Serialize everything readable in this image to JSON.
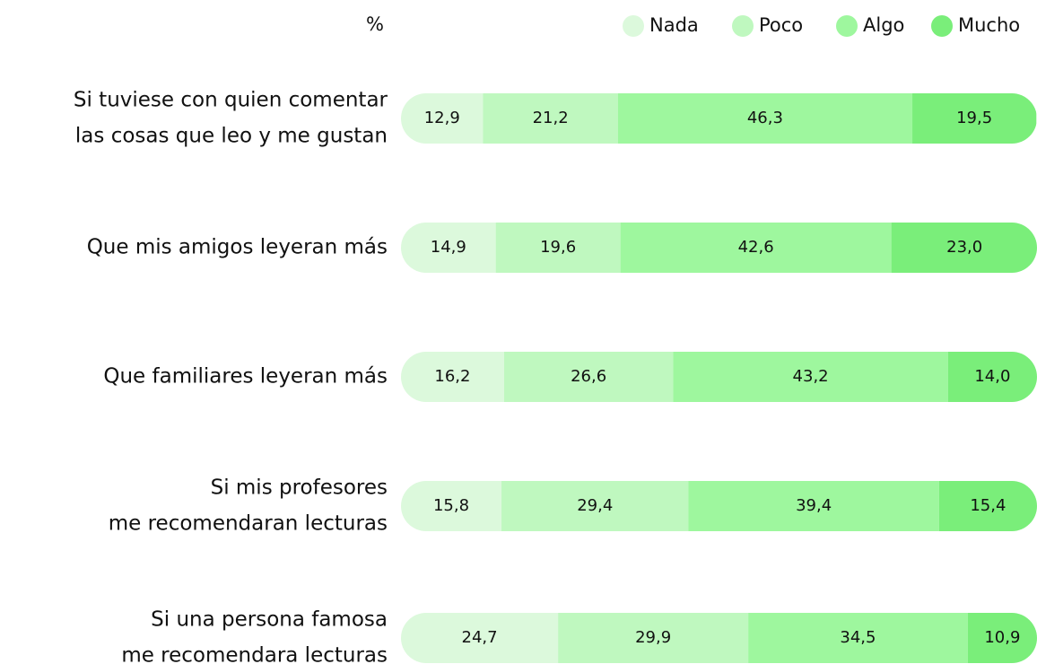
{
  "chart_data": {
    "type": "stacked-bar-horizontal",
    "title": "%",
    "categories": [
      [
        "Si tuviese con quien comentar",
        "las cosas que leo y me gustan"
      ],
      [
        "Que mis amigos leyeran más"
      ],
      [
        "Que familiares leyeran más"
      ],
      [
        "Si mis profesores",
        "me recomendaran lecturas"
      ],
      [
        "Si una persona famosa",
        "me recomendara lecturas"
      ]
    ],
    "xlim": [
      0,
      100
    ],
    "legend": "top-right",
    "series": [
      {
        "name": "Nada",
        "color": "#dcf9dc",
        "values": [
          12.9,
          14.9,
          16.2,
          15.8,
          24.7
        ],
        "value_labels": [
          "12,9",
          "14,9",
          "16,2",
          "15,8",
          "24,7"
        ]
      },
      {
        "name": "Poco",
        "color": "#bff8bf",
        "values": [
          21.2,
          19.6,
          26.6,
          29.4,
          29.9
        ],
        "value_labels": [
          "21,2",
          "19,6",
          "26,6",
          "29,4",
          "29,9"
        ]
      },
      {
        "name": "Algo",
        "color": "#9ef79e",
        "values": [
          46.3,
          42.6,
          43.2,
          39.4,
          34.5
        ],
        "value_labels": [
          "46,3",
          "42,6",
          "43,2",
          "39,4",
          "34,5"
        ]
      },
      {
        "name": "Mucho",
        "color": "#7aee7a",
        "values": [
          19.5,
          23.0,
          14.0,
          15.4,
          10.9
        ],
        "value_labels": [
          "19,5",
          "23,0",
          "14,0",
          "15,4",
          "10,9"
        ]
      }
    ]
  }
}
